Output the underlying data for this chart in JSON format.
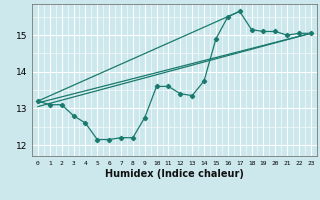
{
  "xlabel": "Humidex (Indice chaleur)",
  "bg_color": "#cce8ec",
  "grid_color": "#ffffff",
  "line_color": "#1a7a6e",
  "x_min": -0.5,
  "x_max": 23.5,
  "y_min": 11.7,
  "y_max": 15.85,
  "yticks": [
    12,
    13,
    14,
    15
  ],
  "xticks": [
    0,
    1,
    2,
    3,
    4,
    5,
    6,
    7,
    8,
    9,
    10,
    11,
    12,
    13,
    14,
    15,
    16,
    17,
    18,
    19,
    20,
    21,
    22,
    23
  ],
  "zigzag_x": [
    0,
    1,
    2,
    3,
    4,
    5,
    6,
    7,
    8,
    9,
    10,
    11,
    12,
    13,
    14,
    15,
    16,
    17,
    18,
    19,
    20,
    21,
    22,
    23
  ],
  "zigzag_y": [
    13.2,
    13.1,
    13.1,
    12.8,
    12.6,
    12.15,
    12.15,
    12.2,
    12.2,
    12.75,
    13.6,
    13.6,
    13.4,
    13.35,
    13.75,
    14.9,
    15.5,
    15.65,
    15.15,
    15.1,
    15.1,
    15.0,
    15.05,
    15.05
  ],
  "line1_x": [
    0,
    23
  ],
  "line1_y": [
    13.15,
    15.05
  ],
  "line2_x": [
    0,
    17
  ],
  "line2_y": [
    13.2,
    15.65
  ],
  "line3_x": [
    0,
    23
  ],
  "line3_y": [
    13.05,
    15.05
  ]
}
